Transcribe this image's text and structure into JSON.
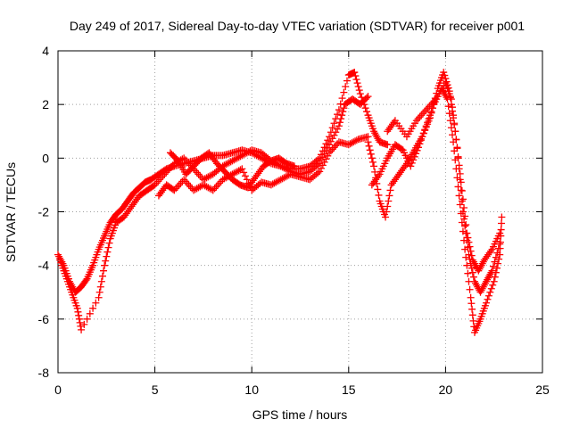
{
  "chart_data": {
    "type": "scatter",
    "title": "Day 249 of 2017, Sidereal Day-to-day VTEC variation (SDTVAR) for receiver p001",
    "xlabel": "GPS time / hours",
    "ylabel": "SDTVAR / TECUs",
    "xlim": [
      0,
      25
    ],
    "ylim": [
      -8,
      4
    ],
    "xticks": [
      0,
      5,
      10,
      15,
      20,
      25
    ],
    "yticks": [
      -8,
      -6,
      -4,
      -2,
      0,
      2,
      4
    ],
    "grid": true,
    "marker": "+",
    "series_color": "#ff0000",
    "series": [
      {
        "name": "track1",
        "points": [
          [
            0.0,
            -3.6
          ],
          [
            0.3,
            -4.0
          ],
          [
            0.6,
            -4.6
          ],
          [
            0.9,
            -5.0
          ],
          [
            1.2,
            -4.8
          ],
          [
            1.5,
            -4.5
          ],
          [
            1.8,
            -4.0
          ],
          [
            2.1,
            -3.4
          ],
          [
            2.4,
            -2.9
          ],
          [
            2.7,
            -2.4
          ],
          [
            3.0,
            -2.1
          ],
          [
            3.3,
            -1.9
          ],
          [
            3.6,
            -1.6
          ],
          [
            3.9,
            -1.3
          ],
          [
            4.2,
            -1.1
          ],
          [
            4.5,
            -0.9
          ],
          [
            4.8,
            -0.8
          ],
          [
            5.2,
            -0.6
          ],
          [
            5.6,
            -0.4
          ],
          [
            6.0,
            -0.3
          ],
          [
            6.5,
            -0.2
          ],
          [
            7.0,
            -0.1
          ],
          [
            7.5,
            0.0
          ],
          [
            8.0,
            0.1
          ],
          [
            8.5,
            0.1
          ],
          [
            9.0,
            0.2
          ],
          [
            9.5,
            0.3
          ],
          [
            10.0,
            0.2
          ],
          [
            10.5,
            0.0
          ],
          [
            11.0,
            -0.2
          ],
          [
            11.5,
            -0.3
          ],
          [
            12.0,
            -0.4
          ],
          [
            12.5,
            -0.4
          ],
          [
            13.0,
            -0.3
          ],
          [
            13.5,
            0.0
          ],
          [
            14.0,
            0.8
          ],
          [
            14.5,
            1.8
          ],
          [
            15.0,
            3.1
          ],
          [
            15.3,
            3.2
          ],
          [
            15.6,
            2.4
          ],
          [
            16.0,
            1.6
          ],
          [
            16.3,
            1.0
          ],
          [
            16.6,
            0.6
          ],
          [
            17.0,
            0.5
          ]
        ]
      },
      {
        "name": "track2",
        "points": [
          [
            0.1,
            -3.8
          ],
          [
            0.4,
            -4.4
          ],
          [
            0.7,
            -5.0
          ],
          [
            1.0,
            -5.6
          ],
          [
            1.2,
            -6.4
          ],
          [
            2.1,
            -5.2
          ],
          [
            2.4,
            -4.0
          ],
          [
            2.7,
            -3.0
          ],
          [
            3.0,
            -2.4
          ],
          [
            3.4,
            -2.2
          ],
          [
            3.8,
            -1.8
          ],
          [
            4.2,
            -1.4
          ],
          [
            4.6,
            -1.2
          ],
          [
            5.0,
            -1.0
          ],
          [
            5.5,
            -0.6
          ],
          [
            6.0,
            -0.2
          ],
          [
            6.5,
            0.0
          ],
          [
            7.0,
            -0.4
          ],
          [
            7.5,
            -0.8
          ],
          [
            8.0,
            -0.6
          ],
          [
            8.5,
            -0.3
          ],
          [
            9.0,
            -0.1
          ],
          [
            9.5,
            0.1
          ],
          [
            10.0,
            0.3
          ],
          [
            10.5,
            0.2
          ],
          [
            11.0,
            -0.1
          ],
          [
            11.5,
            -0.3
          ],
          [
            12.0,
            -0.5
          ],
          [
            12.5,
            -0.6
          ],
          [
            13.0,
            -0.5
          ],
          [
            13.5,
            -0.2
          ],
          [
            14.0,
            0.5
          ],
          [
            14.5,
            1.2
          ],
          [
            14.8,
            2.0
          ],
          [
            15.2,
            2.2
          ],
          [
            15.6,
            2.0
          ],
          [
            16.0,
            2.3
          ]
        ]
      },
      {
        "name": "track3",
        "points": [
          [
            5.2,
            -1.4
          ],
          [
            5.6,
            -1.0
          ],
          [
            6.0,
            -1.2
          ],
          [
            6.5,
            -0.8
          ],
          [
            7.0,
            -1.2
          ],
          [
            7.5,
            -1.0
          ],
          [
            8.0,
            -1.2
          ],
          [
            8.5,
            -0.8
          ],
          [
            9.0,
            -0.6
          ],
          [
            9.5,
            -0.4
          ],
          [
            10.0,
            -1.2
          ],
          [
            10.5,
            -0.9
          ],
          [
            11.0,
            -1.0
          ],
          [
            11.5,
            -0.8
          ],
          [
            12.0,
            -0.6
          ],
          [
            12.5,
            -0.7
          ],
          [
            13.0,
            -0.8
          ],
          [
            13.5,
            -0.5
          ],
          [
            14.0,
            0.2
          ],
          [
            14.5,
            0.6
          ],
          [
            15.0,
            0.5
          ],
          [
            15.5,
            0.7
          ],
          [
            16.0,
            0.8
          ]
        ]
      },
      {
        "name": "track4",
        "points": [
          [
            5.8,
            0.2
          ],
          [
            6.2,
            -0.1
          ],
          [
            6.6,
            -0.6
          ],
          [
            7.0,
            -0.3
          ],
          [
            7.4,
            0.0
          ],
          [
            7.8,
            0.2
          ],
          [
            8.2,
            -0.2
          ],
          [
            8.6,
            -0.5
          ],
          [
            9.0,
            -0.8
          ],
          [
            9.4,
            -1.0
          ],
          [
            9.8,
            -1.1
          ],
          [
            10.2,
            -0.7
          ],
          [
            10.6,
            -0.3
          ],
          [
            11.0,
            -0.1
          ],
          [
            11.4,
            0.0
          ],
          [
            11.8,
            -0.2
          ],
          [
            12.2,
            -0.3
          ]
        ]
      },
      {
        "name": "track5",
        "points": [
          [
            16.0,
            0.6
          ],
          [
            16.3,
            -0.3
          ],
          [
            16.6,
            -1.6
          ],
          [
            16.9,
            -2.2
          ],
          [
            17.2,
            -1.0
          ],
          [
            17.6,
            -0.6
          ],
          [
            18.0,
            -0.2
          ],
          [
            18.4,
            0.3
          ],
          [
            18.8,
            0.8
          ],
          [
            19.2,
            1.5
          ],
          [
            19.6,
            2.6
          ],
          [
            19.9,
            3.2
          ],
          [
            20.2,
            2.5
          ],
          [
            20.5,
            1.0
          ],
          [
            20.8,
            -0.9
          ],
          [
            21.1,
            -2.8
          ],
          [
            21.4,
            -3.8
          ],
          [
            21.7,
            -4.2
          ],
          [
            22.0,
            -3.8
          ],
          [
            22.4,
            -3.4
          ],
          [
            22.8,
            -2.8
          ]
        ]
      },
      {
        "name": "track6",
        "points": [
          [
            16.2,
            -1.0
          ],
          [
            16.6,
            -0.6
          ],
          [
            17.0,
            0.0
          ],
          [
            17.4,
            0.5
          ],
          [
            17.8,
            0.3
          ],
          [
            18.2,
            -0.3
          ],
          [
            18.6,
            0.4
          ],
          [
            19.0,
            1.2
          ],
          [
            19.4,
            2.0
          ],
          [
            19.8,
            2.6
          ],
          [
            20.1,
            2.2
          ],
          [
            20.4,
            0.6
          ],
          [
            20.7,
            -1.4
          ],
          [
            21.0,
            -3.4
          ],
          [
            21.3,
            -5.2
          ],
          [
            21.5,
            -6.5
          ],
          [
            21.8,
            -6.0
          ],
          [
            22.1,
            -5.4
          ],
          [
            22.5,
            -4.6
          ],
          [
            22.8,
            -3.6
          ],
          [
            22.9,
            -2.2
          ]
        ]
      },
      {
        "name": "track7",
        "points": [
          [
            17.0,
            1.0
          ],
          [
            17.4,
            1.4
          ],
          [
            18.0,
            0.8
          ],
          [
            18.5,
            1.4
          ],
          [
            19.0,
            1.8
          ],
          [
            19.5,
            2.2
          ],
          [
            20.0,
            2.8
          ],
          [
            20.3,
            2.2
          ],
          [
            20.6,
            0.4
          ],
          [
            20.9,
            -2.0
          ],
          [
            21.2,
            -3.6
          ],
          [
            21.5,
            -4.6
          ],
          [
            21.8,
            -5.0
          ],
          [
            22.1,
            -4.6
          ],
          [
            22.4,
            -4.2
          ],
          [
            22.8,
            -3.2
          ]
        ]
      }
    ]
  }
}
